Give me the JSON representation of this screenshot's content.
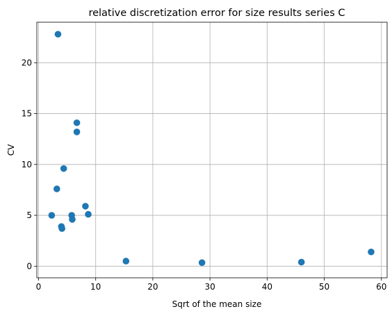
{
  "chart_data": {
    "type": "scatter",
    "title": "relative discretization error for size results series C",
    "xlabel": "Sqrt of the mean size",
    "ylabel": "CV",
    "xlim": [
      -0.3,
      61.0
    ],
    "ylim": [
      -1.14,
      23.98
    ],
    "xticks": [
      0,
      10,
      20,
      30,
      40,
      50,
      60
    ],
    "yticks": [
      0,
      5,
      10,
      15,
      20
    ],
    "grid": true,
    "marker_color": "#1f77b4",
    "points": [
      {
        "x": 3.4,
        "y": 22.8
      },
      {
        "x": 6.7,
        "y": 14.1
      },
      {
        "x": 6.7,
        "y": 13.2
      },
      {
        "x": 4.4,
        "y": 9.6
      },
      {
        "x": 3.2,
        "y": 7.6
      },
      {
        "x": 8.2,
        "y": 5.9
      },
      {
        "x": 2.3,
        "y": 5.0
      },
      {
        "x": 5.8,
        "y": 5.0
      },
      {
        "x": 8.7,
        "y": 5.1
      },
      {
        "x": 5.9,
        "y": 4.6
      },
      {
        "x": 4.0,
        "y": 3.9
      },
      {
        "x": 4.1,
        "y": 3.7
      },
      {
        "x": 15.3,
        "y": 0.5
      },
      {
        "x": 28.6,
        "y": 0.35
      },
      {
        "x": 46.0,
        "y": 0.4
      },
      {
        "x": 58.2,
        "y": 1.4
      }
    ]
  }
}
